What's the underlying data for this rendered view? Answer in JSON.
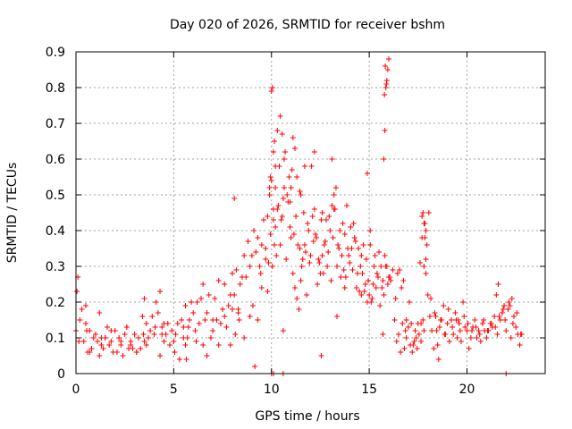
{
  "chart_data": {
    "type": "scatter",
    "title": "Day 020 of 2026, SRMTID for receiver bshm",
    "xlabel": "GPS time / hours",
    "ylabel": "SRMTID / TECUs",
    "xlim": [
      0,
      24
    ],
    "ylim": [
      0,
      0.9
    ],
    "x_ticks": [
      "0",
      "5",
      "10",
      "15",
      "20"
    ],
    "y_ticks": [
      "0",
      "0.1",
      "0.2",
      "0.3",
      "0.4",
      "0.5",
      "0.6",
      "0.7",
      "0.8",
      "0.9"
    ],
    "grid": true,
    "marker": "+",
    "color": "#ff0000",
    "series": [
      {
        "name": "SRMTID",
        "x": [
          0.0,
          0.1,
          0.2,
          0.3,
          0.4,
          0.5,
          0.6,
          0.7,
          0.8,
          0.9,
          1.0,
          1.1,
          1.2,
          1.3,
          1.4,
          1.5,
          1.6,
          1.7,
          1.8,
          1.9,
          2.0,
          2.1,
          2.2,
          2.3,
          2.4,
          2.5,
          2.6,
          2.7,
          2.8,
          2.9,
          3.0,
          3.1,
          3.2,
          3.3,
          3.4,
          3.5,
          3.6,
          3.7,
          3.8,
          3.9,
          4.0,
          4.1,
          4.2,
          4.3,
          4.4,
          4.5,
          4.6,
          4.7,
          4.8,
          4.9,
          5.0,
          5.1,
          5.2,
          5.3,
          5.4,
          5.5,
          5.6,
          5.7,
          5.8,
          5.9,
          6.0,
          6.1,
          6.2,
          6.3,
          6.4,
          6.5,
          6.6,
          6.7,
          6.8,
          6.9,
          7.0,
          7.1,
          7.2,
          7.3,
          7.4,
          7.5,
          7.6,
          7.7,
          7.8,
          7.9,
          8.0,
          8.1,
          8.2,
          8.3,
          8.4,
          8.5,
          8.6,
          8.7,
          8.8,
          8.9,
          9.0,
          9.1,
          9.2,
          9.3,
          9.4,
          9.5,
          9.6,
          9.7,
          9.8,
          9.9,
          10.0,
          10.1,
          10.2,
          10.3,
          10.4,
          10.5,
          10.6,
          10.7,
          10.8,
          10.9,
          11.0,
          11.1,
          11.2,
          11.3,
          11.4,
          11.5,
          11.6,
          11.7,
          11.8,
          11.9,
          12.0,
          12.1,
          12.2,
          12.3,
          12.4,
          12.5,
          12.6,
          12.7,
          12.8,
          12.9,
          13.0,
          13.1,
          13.2,
          13.3,
          13.4,
          13.5,
          13.6,
          13.7,
          13.8,
          13.9,
          14.0,
          14.1,
          14.2,
          14.3,
          14.4,
          14.5,
          14.6,
          14.7,
          14.8,
          14.9,
          15.0,
          15.1,
          15.2,
          15.3,
          15.4,
          15.5,
          15.6,
          15.7,
          15.8,
          15.9,
          16.0,
          16.1,
          16.2,
          16.3,
          16.4,
          16.5,
          16.6,
          16.7,
          16.8,
          16.9,
          17.0,
          17.1,
          17.2,
          17.3,
          17.4,
          17.5,
          17.6,
          17.7,
          17.8,
          17.9,
          18.0,
          18.1,
          18.2,
          18.3,
          18.4,
          18.5,
          18.6,
          18.7,
          18.8,
          18.9,
          19.0,
          19.1,
          19.2,
          19.3,
          19.4,
          19.5,
          19.6,
          19.7,
          19.8,
          19.9,
          20.0,
          20.1,
          20.2,
          20.3,
          20.4,
          20.5,
          20.6,
          20.7,
          20.8,
          20.9,
          21.0,
          21.1,
          21.2,
          21.3,
          21.4,
          21.5,
          21.6,
          21.7,
          21.8,
          21.9,
          22.0,
          22.1,
          22.2,
          22.3,
          22.4,
          22.5,
          22.6,
          22.7,
          22.8,
          0.05,
          0.15,
          0.5,
          0.55,
          0.7,
          1.2,
          1.5,
          1.8,
          2.3,
          2.6,
          3.1,
          3.45,
          3.5,
          3.6,
          4.05,
          4.3,
          4.4,
          4.5,
          5.05,
          5.5,
          5.65,
          5.75,
          6.15,
          6.5,
          7.0,
          7.3,
          7.6,
          7.9,
          8.0,
          8.15,
          8.3,
          8.6,
          8.9,
          9.05,
          9.3,
          9.45,
          9.5,
          9.7,
          9.8,
          9.85,
          9.95,
          10.05,
          10.1,
          10.15,
          10.2,
          10.25,
          10.35,
          10.45,
          10.55,
          10.65,
          10.75,
          10.85,
          10.95,
          11.05,
          11.15,
          11.25,
          11.35,
          11.45,
          11.55,
          11.65,
          11.75,
          11.85,
          11.95,
          12.05,
          12.15,
          12.25,
          12.35,
          12.45,
          12.55,
          12.65,
          12.75,
          12.85,
          12.95,
          13.05,
          13.15,
          13.25,
          13.35,
          13.45,
          13.55,
          13.65,
          13.75,
          13.85,
          13.95,
          14.05,
          14.15,
          14.25,
          14.35,
          14.45,
          14.55,
          14.65,
          14.75,
          14.85,
          14.95,
          15.05,
          15.15,
          15.25,
          15.35,
          15.45,
          15.55,
          15.65,
          15.75,
          15.85,
          15.95,
          16.05,
          16.35,
          16.45,
          16.55,
          16.65,
          16.75,
          16.85,
          17.05,
          17.15,
          17.25,
          17.35,
          17.45,
          17.55,
          17.65,
          17.75,
          17.8,
          17.85,
          17.9,
          17.95,
          18.05,
          18.15,
          18.35,
          18.45,
          18.65,
          18.85,
          19.05,
          19.25,
          19.45,
          19.65,
          19.85,
          20.05,
          20.25,
          20.45,
          20.65,
          20.85,
          21.05,
          21.25,
          21.45,
          21.65,
          21.85,
          21.95,
          22.15,
          22.35,
          22.55,
          22.75,
          1.3,
          2.8,
          5.6,
          6.7,
          8.35,
          9.15,
          10.6,
          11.45,
          12.55,
          13.35,
          13.75,
          14.6,
          15.7,
          16.9,
          17.65,
          18.55,
          19.55,
          21.55,
          22.25,
          17.7,
          17.75,
          17.8,
          17.85,
          17.9,
          15.75,
          15.8,
          15.85,
          15.9,
          15.95,
          16.0,
          15.78,
          15.82,
          15.88,
          8.1,
          9.95,
          10.95,
          22.0,
          10.0,
          10.05,
          10.1,
          10.15,
          10.2,
          10.1,
          10.45,
          10.55,
          10.6,
          10.65,
          11.0,
          11.1,
          11.2,
          11.3,
          11.5,
          11.7,
          12.2,
          12.6,
          13.1,
          13.2,
          14.9,
          15.05,
          9.9,
          10.0,
          10.3
        ],
        "y": [
          0.12,
          0.27,
          0.15,
          0.18,
          0.09,
          0.14,
          0.06,
          0.12,
          0.07,
          0.1,
          0.11,
          0.09,
          0.05,
          0.08,
          0.07,
          0.1,
          0.13,
          0.08,
          0.09,
          0.06,
          0.12,
          0.06,
          0.1,
          0.08,
          0.05,
          0.11,
          0.13,
          0.07,
          0.09,
          0.07,
          0.11,
          0.06,
          0.1,
          0.07,
          0.16,
          0.21,
          0.14,
          0.1,
          0.12,
          0.16,
          0.11,
          0.2,
          0.17,
          0.23,
          0.13,
          0.09,
          0.11,
          0.14,
          0.08,
          0.12,
          0.09,
          0.11,
          0.14,
          0.04,
          0.15,
          0.13,
          0.19,
          0.1,
          0.15,
          0.2,
          0.17,
          0.12,
          0.2,
          0.14,
          0.21,
          0.25,
          0.15,
          0.17,
          0.22,
          0.1,
          0.12,
          0.21,
          0.15,
          0.26,
          0.14,
          0.18,
          0.25,
          0.13,
          0.19,
          0.22,
          0.28,
          0.22,
          0.29,
          0.18,
          0.25,
          0.27,
          0.33,
          0.27,
          0.37,
          0.3,
          0.33,
          0.4,
          0.34,
          0.38,
          0.3,
          0.36,
          0.43,
          0.32,
          0.44,
          0.5,
          0.54,
          0.46,
          0.52,
          0.46,
          0.58,
          0.43,
          0.49,
          0.62,
          0.5,
          0.55,
          0.38,
          0.28,
          0.24,
          0.21,
          0.18,
          0.26,
          0.32,
          0.36,
          0.22,
          0.4,
          0.33,
          0.44,
          0.46,
          0.38,
          0.32,
          0.28,
          0.33,
          0.36,
          0.43,
          0.34,
          0.4,
          0.47,
          0.5,
          0.52,
          0.36,
          0.4,
          0.33,
          0.29,
          0.27,
          0.35,
          0.31,
          0.35,
          0.42,
          0.37,
          0.28,
          0.23,
          0.33,
          0.36,
          0.25,
          0.2,
          0.22,
          0.2,
          0.25,
          0.33,
          0.28,
          0.34,
          0.3,
          0.26,
          0.33,
          0.3,
          0.27,
          0.26,
          0.29,
          0.15,
          0.09,
          0.11,
          0.06,
          0.14,
          0.07,
          0.1,
          0.13,
          0.08,
          0.06,
          0.09,
          0.1,
          0.14,
          0.31,
          0.38,
          0.3,
          0.28,
          0.22,
          0.16,
          0.12,
          0.07,
          0.16,
          0.08,
          0.13,
          0.15,
          0.19,
          0.11,
          0.14,
          0.09,
          0.15,
          0.11,
          0.17,
          0.1,
          0.14,
          0.09,
          0.2,
          0.13,
          0.12,
          0.07,
          0.1,
          0.13,
          0.15,
          0.1,
          0.12,
          0.09,
          0.14,
          0.12,
          0.1,
          0.12,
          0.14,
          0.13,
          0.16,
          0.22,
          0.25,
          0.15,
          0.17,
          0.19,
          0.12,
          0.18,
          0.19,
          0.21,
          0.16,
          0.13,
          0.11,
          0.08,
          0.11,
          0.23,
          0.09,
          0.19,
          0.12,
          0.06,
          0.17,
          0.1,
          0.12,
          0.09,
          0.13,
          0.06,
          0.11,
          0.09,
          0.08,
          0.13,
          0.05,
          0.11,
          0.14,
          0.06,
          0.1,
          0.04,
          0.13,
          0.09,
          0.08,
          0.15,
          0.08,
          0.16,
          0.08,
          0.18,
          0.11,
          0.17,
          0.1,
          0.16,
          0.19,
          0.15,
          0.28,
          0.24,
          0.35,
          0.23,
          0.31,
          0.39,
          0.3,
          0.43,
          0.36,
          0.41,
          0.33,
          0.47,
          0.36,
          0.44,
          0.52,
          0.32,
          0.48,
          0.41,
          0.57,
          0.39,
          0.44,
          0.36,
          0.51,
          0.3,
          0.45,
          0.34,
          0.42,
          0.31,
          0.58,
          0.37,
          0.39,
          0.25,
          0.31,
          0.43,
          0.28,
          0.37,
          0.3,
          0.44,
          0.26,
          0.38,
          0.46,
          0.3,
          0.35,
          0.27,
          0.42,
          0.39,
          0.47,
          0.33,
          0.41,
          0.29,
          0.38,
          0.24,
          0.35,
          0.3,
          0.28,
          0.23,
          0.32,
          0.26,
          0.36,
          0.21,
          0.3,
          0.24,
          0.27,
          0.19,
          0.24,
          0.22,
          0.3,
          0.25,
          0.27,
          0.21,
          0.28,
          0.29,
          0.24,
          0.26,
          0.12,
          0.2,
          0.14,
          0.08,
          0.12,
          0.07,
          0.11,
          0.09,
          0.15,
          0.12,
          0.42,
          0.4,
          0.36,
          0.45,
          0.21,
          0.17,
          0.12,
          0.15,
          0.11,
          0.18,
          0.13,
          0.15,
          0.12,
          0.16,
          0.14,
          0.12,
          0.13,
          0.11,
          0.15,
          0.12,
          0.14,
          0.13,
          0.16,
          0.18,
          0.15,
          0.2,
          0.14,
          0.17,
          0.11,
          0.1,
          0.08,
          0.08,
          0.05,
          0.15,
          0.02,
          0.12,
          0.35,
          0.05,
          0.16,
          0.24,
          0.22,
          0.11,
          0.15,
          0.14,
          0.04,
          0.15,
          0.11,
          0.1,
          0.44,
          0.45,
          0.42,
          0.38,
          0.32,
          0.6,
          0.68,
          0.8,
          0.82,
          0.85,
          0.88,
          0.78,
          0.86,
          0.81,
          0.49,
          0.55,
          0.48,
          0.0,
          0.79,
          0.8,
          0.62,
          0.65,
          0.58,
          0.0,
          0.72,
          0.67,
          0.0,
          0.6,
          0.52,
          0.66,
          0.63,
          0.55,
          0.5,
          0.58,
          0.62,
          0.45,
          0.6,
          0.46,
          0.56,
          0.4,
          0.52,
          0.0,
          0.68
        ],
        "color": "#ff0000"
      }
    ]
  }
}
